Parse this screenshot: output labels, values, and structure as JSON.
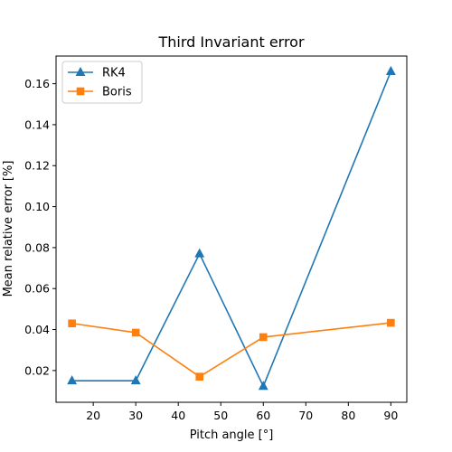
{
  "chart_data": {
    "type": "line",
    "title": "Third Invariant error",
    "xlabel": "Pitch angle [°]",
    "ylabel": "Mean relative error [%]",
    "xlim": [
      11.25,
      93.75
    ],
    "ylim": [
      0.0045,
      0.1735
    ],
    "xticks": [
      20,
      30,
      40,
      50,
      60,
      70,
      80,
      90
    ],
    "yticks": [
      0.02,
      0.04,
      0.06,
      0.08,
      0.1,
      0.12,
      0.14,
      0.16
    ],
    "ytick_labels": [
      "0.02",
      "0.04",
      "0.06",
      "0.08",
      "0.10",
      "0.12",
      "0.14",
      "0.16"
    ],
    "grid": false,
    "legend_position": "top-left",
    "series": [
      {
        "name": "RK4",
        "color": "#1f77b4",
        "marker": "triangle",
        "x": [
          15,
          30,
          45,
          60,
          90
        ],
        "y": [
          0.015,
          0.015,
          0.077,
          0.0123,
          0.166
        ]
      },
      {
        "name": "Boris",
        "color": "#ff7f0e",
        "marker": "square",
        "x": [
          15,
          30,
          45,
          60,
          90
        ],
        "y": [
          0.043,
          0.0385,
          0.017,
          0.0363,
          0.0433
        ]
      }
    ]
  }
}
